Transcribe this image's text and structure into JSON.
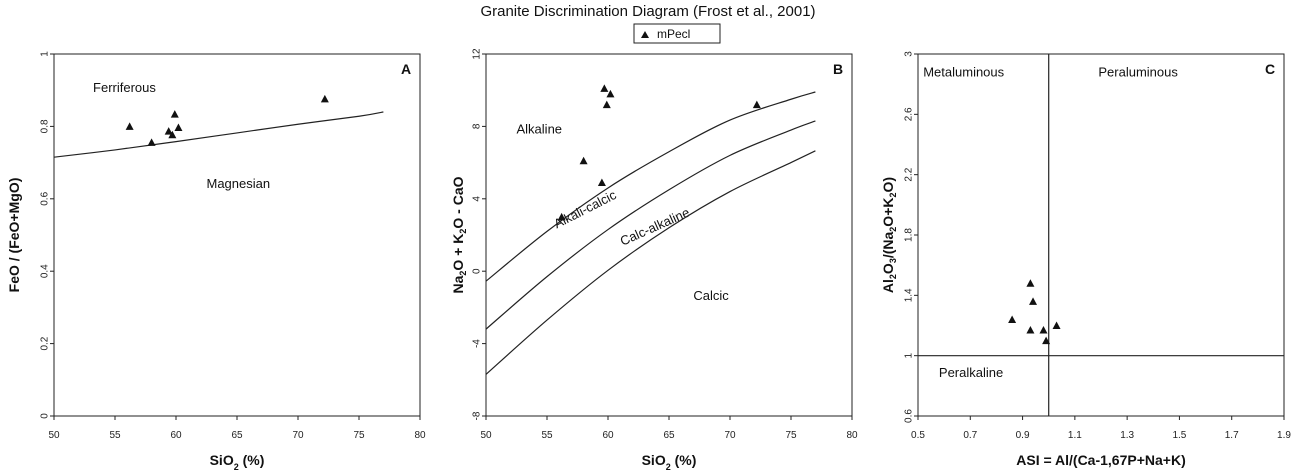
{
  "figure": {
    "title": "Granite Discrimination Diagram (Frost et al., 2001)",
    "legend": {
      "label": "mPecl",
      "marker": "triangle"
    }
  },
  "chart_data": [
    {
      "type": "scatter",
      "panel": "A",
      "xlabel": [
        "SiO",
        "2",
        " (%)"
      ],
      "ylabel": "FeO / (FeO+MgO)",
      "xlim": [
        50,
        80
      ],
      "ylim": [
        0,
        1
      ],
      "xticks": [
        50,
        55,
        60,
        65,
        70,
        75,
        80
      ],
      "yticks": [
        0,
        0.2,
        0.4,
        0.6,
        0.8,
        1
      ],
      "regions": [
        {
          "label": "Ferriferous",
          "x": 53.2,
          "y": 0.895
        },
        {
          "label": "Magnesian",
          "x": 62.5,
          "y": 0.63
        }
      ],
      "boundaries": [
        {
          "name": "ferriferous-magnesian",
          "x": [
            50,
            55,
            60,
            65,
            70,
            75,
            77
          ],
          "y": [
            0.715,
            0.735,
            0.758,
            0.782,
            0.806,
            0.828,
            0.84
          ]
        }
      ],
      "series": [
        {
          "name": "mPecl",
          "x": [
            56.2,
            58,
            59.4,
            59.7,
            59.9,
            60.2,
            72.2
          ],
          "y": [
            0.8,
            0.756,
            0.787,
            0.777,
            0.834,
            0.797,
            0.876
          ]
        }
      ]
    },
    {
      "type": "scatter",
      "panel": "B",
      "xlabel": [
        "SiO",
        "2",
        " (%)"
      ],
      "ylabel": [
        "Na",
        "2",
        "O + K",
        "2",
        "O - CaO"
      ],
      "xlim": [
        50,
        80
      ],
      "ylim": [
        -8,
        12
      ],
      "xticks": [
        50,
        55,
        60,
        65,
        70,
        75,
        80
      ],
      "yticks": [
        -8,
        -4,
        0,
        4,
        8,
        12
      ],
      "regions": [
        {
          "label": "Alkaline",
          "x": 52.5,
          "y": 7.6
        },
        {
          "label": "Calcic",
          "x": 67,
          "y": -1.6
        }
      ],
      "boundaries": [
        {
          "name": "alkali-calcic boundary",
          "label": "Alkali-calcic",
          "label_at": [
            55.8,
            2.35
          ],
          "label_angle": -27,
          "x": [
            50,
            55,
            60,
            65,
            70,
            75,
            77
          ],
          "y": [
            -0.55,
            2.2,
            4.6,
            6.6,
            8.35,
            9.5,
            9.9
          ]
        },
        {
          "name": "calc-alkaline boundary",
          "label": "Calc-alkaline",
          "label_at": [
            61.2,
            1.4
          ],
          "label_angle": -24,
          "x": [
            50,
            55,
            60,
            65,
            70,
            75,
            77
          ],
          "y": [
            -3.2,
            -0.3,
            2.3,
            4.5,
            6.4,
            7.8,
            8.3
          ]
        },
        {
          "name": "calcic boundary",
          "x": [
            50,
            55,
            60,
            65,
            70,
            75,
            77
          ],
          "y": [
            -5.7,
            -2.7,
            0.05,
            2.4,
            4.4,
            6.0,
            6.65
          ]
        }
      ],
      "series": [
        {
          "name": "mPecl",
          "x": [
            56.2,
            58,
            59.5,
            59.7,
            59.9,
            60.2,
            72.2
          ],
          "y": [
            3.0,
            6.1,
            4.9,
            10.1,
            9.2,
            9.8,
            9.2
          ]
        }
      ]
    },
    {
      "type": "scatter",
      "panel": "C",
      "xlabel": "ASI = Al/(Ca-1,67P+Na+K)",
      "ylabel": [
        "Al",
        "2",
        "O",
        "3",
        "/(Na",
        "2",
        "O+K",
        "2",
        "O)"
      ],
      "xlim": [
        0.5,
        1.9
      ],
      "ylim": [
        0.6,
        3
      ],
      "xticks": [
        0.5,
        0.7,
        0.9,
        1.1,
        1.3,
        1.5,
        1.7,
        1.9
      ],
      "yticks": [
        0.6,
        1,
        1.4,
        1.8,
        2.2,
        2.6,
        3
      ],
      "regions": [
        {
          "label": "Metaluminous",
          "x": 0.52,
          "y": 2.85
        },
        {
          "label": "Peraluminous",
          "x": 1.19,
          "y": 2.85
        },
        {
          "label": "Peralkaline",
          "x": 0.58,
          "y": 0.86
        }
      ],
      "divisions": {
        "vertical_x": 1.0,
        "horizontal_y": 1.0
      },
      "series": [
        {
          "name": "mPecl",
          "x": [
            0.86,
            0.93,
            0.93,
            0.94,
            0.98,
            0.99,
            1.03
          ],
          "y": [
            1.24,
            1.48,
            1.17,
            1.36,
            1.17,
            1.1,
            1.2
          ]
        }
      ]
    }
  ]
}
